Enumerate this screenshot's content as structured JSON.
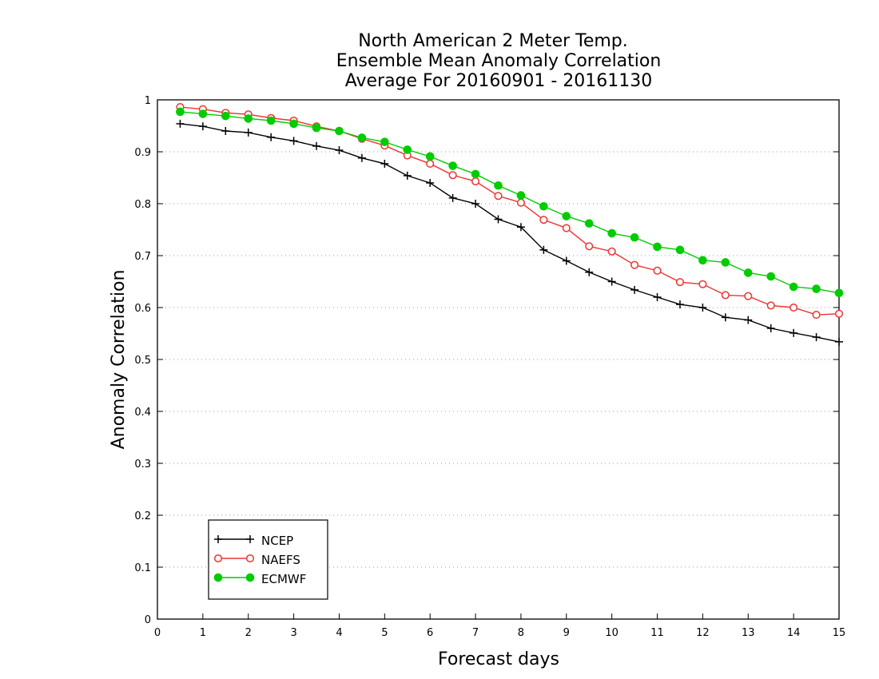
{
  "chart_data": {
    "type": "line",
    "title_lines": [
      "North American 2 Meter Temp.",
      "Ensemble Mean Anomaly Correlation",
      "Average For 20160901 - 20161130"
    ],
    "xlabel": "Forecast days",
    "ylabel": "Anomaly Correlation",
    "xlim": [
      0,
      15
    ],
    "ylim": [
      0,
      1
    ],
    "x_ticks": [
      "0",
      "1",
      "2",
      "3",
      "4",
      "5",
      "6",
      "7",
      "8",
      "9",
      "10",
      "11",
      "12",
      "13",
      "14",
      "15"
    ],
    "y_ticks": [
      "0",
      "0.1",
      "0.2",
      "0.3",
      "0.4",
      "0.5",
      "0.6",
      "0.7",
      "0.8",
      "0.9",
      "1"
    ],
    "grid": "horizontal dotted",
    "legend_position": "bottom-left",
    "x": [
      0.5,
      1,
      1.5,
      2,
      2.5,
      3,
      3.5,
      4,
      4.5,
      5,
      5.5,
      6,
      6.5,
      7,
      7.5,
      8,
      8.5,
      9,
      9.5,
      10,
      10.5,
      11,
      11.5,
      12,
      12.5,
      13,
      13.5,
      14,
      14.5,
      15
    ],
    "series": [
      {
        "name": "NCEP",
        "color": "#000000",
        "marker": "plus",
        "values": [
          0.954,
          0.949,
          0.94,
          0.937,
          0.928,
          0.921,
          0.911,
          0.903,
          0.888,
          0.877,
          0.854,
          0.84,
          0.811,
          0.8,
          0.77,
          0.755,
          0.711,
          0.69,
          0.668,
          0.65,
          0.634,
          0.62,
          0.606,
          0.6,
          0.581,
          0.576,
          0.56,
          0.551,
          0.543,
          0.534
        ]
      },
      {
        "name": "NAEFS",
        "color": "#ee3333",
        "marker": "open-circle",
        "values": [
          0.986,
          0.982,
          0.975,
          0.972,
          0.965,
          0.96,
          0.949,
          0.94,
          0.925,
          0.912,
          0.893,
          0.877,
          0.855,
          0.843,
          0.815,
          0.802,
          0.769,
          0.753,
          0.718,
          0.708,
          0.682,
          0.671,
          0.649,
          0.645,
          0.624,
          0.622,
          0.604,
          0.6,
          0.586,
          0.588
        ]
      },
      {
        "name": "ECMWF",
        "color": "#00cc00",
        "marker": "filled-circle",
        "values": [
          0.977,
          0.973,
          0.969,
          0.964,
          0.96,
          0.954,
          0.946,
          0.94,
          0.927,
          0.919,
          0.904,
          0.891,
          0.873,
          0.857,
          0.835,
          0.816,
          0.795,
          0.776,
          0.762,
          0.743,
          0.735,
          0.717,
          0.711,
          0.691,
          0.687,
          0.667,
          0.66,
          0.64,
          0.636,
          0.628
        ]
      }
    ]
  }
}
